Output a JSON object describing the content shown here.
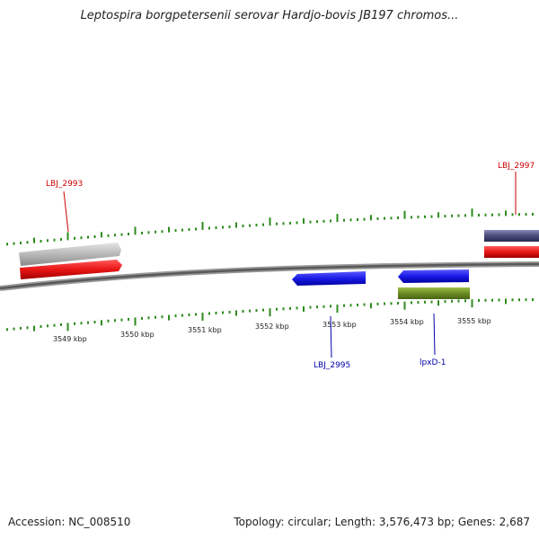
{
  "title": "Leptospira borgpetersenii serovar Hardjo-bovis JB197 chromos...",
  "footer": {
    "accession": "Accession: NC_008510",
    "summary": "Topology: circular; Length: 3,576,473 bp; Genes: 2,687"
  },
  "colors": {
    "backbone": "#777777",
    "tick": "#2e8b1e",
    "forward_gene": "#e81515",
    "reverse_gene": "#1a1ae6",
    "rna_gene": "#b8b8b8",
    "hypothetical": "#4a4a7a",
    "olive_gene": "#6b8c22",
    "forward_label": "#cc0000",
    "reverse_label": "#0000aa"
  },
  "scale": {
    "unit": "kbp",
    "ticks": [
      "3549 kbp",
      "3550 kbp",
      "3551 kbp",
      "3552 kbp",
      "3553 kbp",
      "3554 kbp",
      "3555 kbp"
    ]
  },
  "genes": [
    {
      "name": "LBJ_2993",
      "strand": "forward",
      "color": "#e81515",
      "labeled": true
    },
    {
      "name": "",
      "strand": "forward",
      "color": "#b8b8b8",
      "labeled": false
    },
    {
      "name": "LBJ_2995",
      "strand": "reverse",
      "color": "#1a1ae6",
      "labeled": true
    },
    {
      "name": "",
      "strand": "reverse",
      "color": "#1a1ae6",
      "labeled": false
    },
    {
      "name": "lpxD-1",
      "strand": "reverse",
      "color": "#6b8c22",
      "labeled": true
    },
    {
      "name": "LBJ_2997",
      "strand": "forward",
      "color": "#e81515",
      "labeled": true
    },
    {
      "name": "",
      "strand": "forward",
      "color": "#4a4a7a",
      "labeled": false
    }
  ]
}
